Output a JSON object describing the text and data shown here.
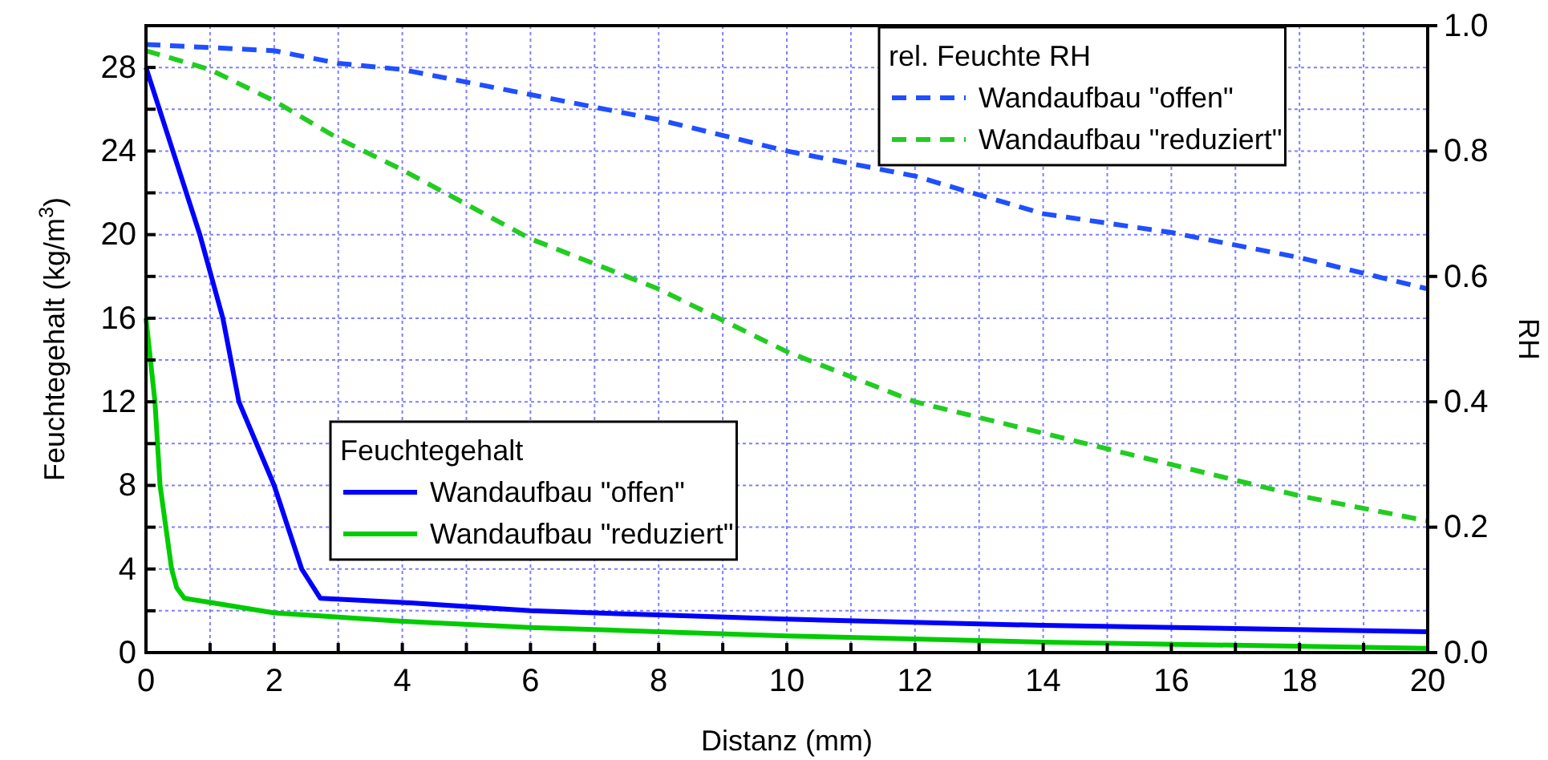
{
  "chart_data": {
    "type": "line",
    "xlabel": "Distanz (mm)",
    "ylabel": "Feuchtegehalt (kg/m$^{3}$)",
    "y2label": "RH",
    "legend_title": [
      "Feuchtegehalt",
      "rel. Feuchte RH"
    ],
    "legend": [
      "bottom",
      "top right"
    ],
    "grid": true,
    "marker": "none",
    "xlim": [
      0,
      20
    ],
    "xticks": [
      0,
      {
        "value": 1,
        "label": null
      },
      2,
      {
        "value": 3,
        "label": null
      },
      4,
      {
        "value": 5,
        "label": null
      },
      6,
      {
        "value": 7,
        "label": null
      },
      8,
      {
        "value": 9,
        "label": null
      },
      10,
      {
        "value": 11,
        "label": null
      },
      12,
      {
        "value": 13,
        "label": null
      },
      14,
      {
        "value": 15,
        "label": null
      },
      16,
      {
        "value": 17,
        "label": null
      },
      18,
      {
        "value": 19,
        "label": null
      },
      20
    ],
    "ylim": [
      0,
      30
    ],
    "yticks": [
      0,
      {
        "value": 2,
        "label": null
      },
      4,
      {
        "value": 6,
        "label": null
      },
      8,
      {
        "value": 10,
        "label": null
      },
      12,
      {
        "value": 14,
        "label": null
      },
      16,
      {
        "value": 18,
        "label": null
      },
      20,
      {
        "value": 22,
        "label": null
      },
      24,
      {
        "value": 26,
        "label": null
      },
      28
    ],
    "y2lim": [
      0,
      1
    ],
    "y2ticks": [
      {
        "value": 0,
        "label": "0.0"
      },
      0.2,
      0.4,
      0.6,
      0.8,
      {
        "value": 1,
        "label": "1.0"
      }
    ],
    "series": [
      {
        "name": "Wandaufbau \"offen\"",
        "color": "#0000ff",
        "line_style": "solid",
        "x": [
          0,
          0.42,
          0.84,
          1.2,
          1.45,
          2.0,
          2.43,
          2.72,
          4,
          6,
          8,
          10,
          14,
          20
        ],
        "values": [
          28,
          24,
          20,
          16,
          12,
          8,
          4,
          2.6,
          2.4,
          2.0,
          1.8,
          1.6,
          1.3,
          1.0
        ]
      },
      {
        "name": "Wandaufbau \"reduziert\"",
        "color": "#00cc00",
        "line_style": "solid",
        "x": [
          0,
          0.14,
          0.22,
          0.4,
          0.48,
          0.6,
          2,
          4,
          6,
          8,
          10,
          14,
          20
        ],
        "values": [
          16,
          12,
          8,
          4,
          3.1,
          2.6,
          1.9,
          1.5,
          1.2,
          1.0,
          0.8,
          0.5,
          0.2
        ]
      },
      {
        "name": "Wandaufbau \"offen\"",
        "color": "#1f4fff",
        "line_style": "dashed",
        "axis": "y2",
        "x": [
          0,
          2,
          3,
          4,
          6,
          8,
          10,
          12,
          14,
          16,
          18,
          20
        ],
        "values": [
          0.97,
          0.96,
          0.94,
          0.93,
          0.89,
          0.85,
          0.8,
          0.76,
          0.7,
          0.67,
          0.63,
          0.58
        ]
      },
      {
        "name": "Wandaufbau \"reduziert\"",
        "color": "#22cc22",
        "line_style": "dashed",
        "axis": "y2",
        "x": [
          0,
          1,
          2,
          3,
          4,
          6,
          8,
          10,
          12,
          14,
          16,
          18,
          20
        ],
        "values": [
          0.96,
          0.93,
          0.88,
          0.82,
          0.77,
          0.66,
          0.58,
          0.48,
          0.4,
          0.35,
          0.3,
          0.25,
          0.21
        ]
      }
    ]
  }
}
